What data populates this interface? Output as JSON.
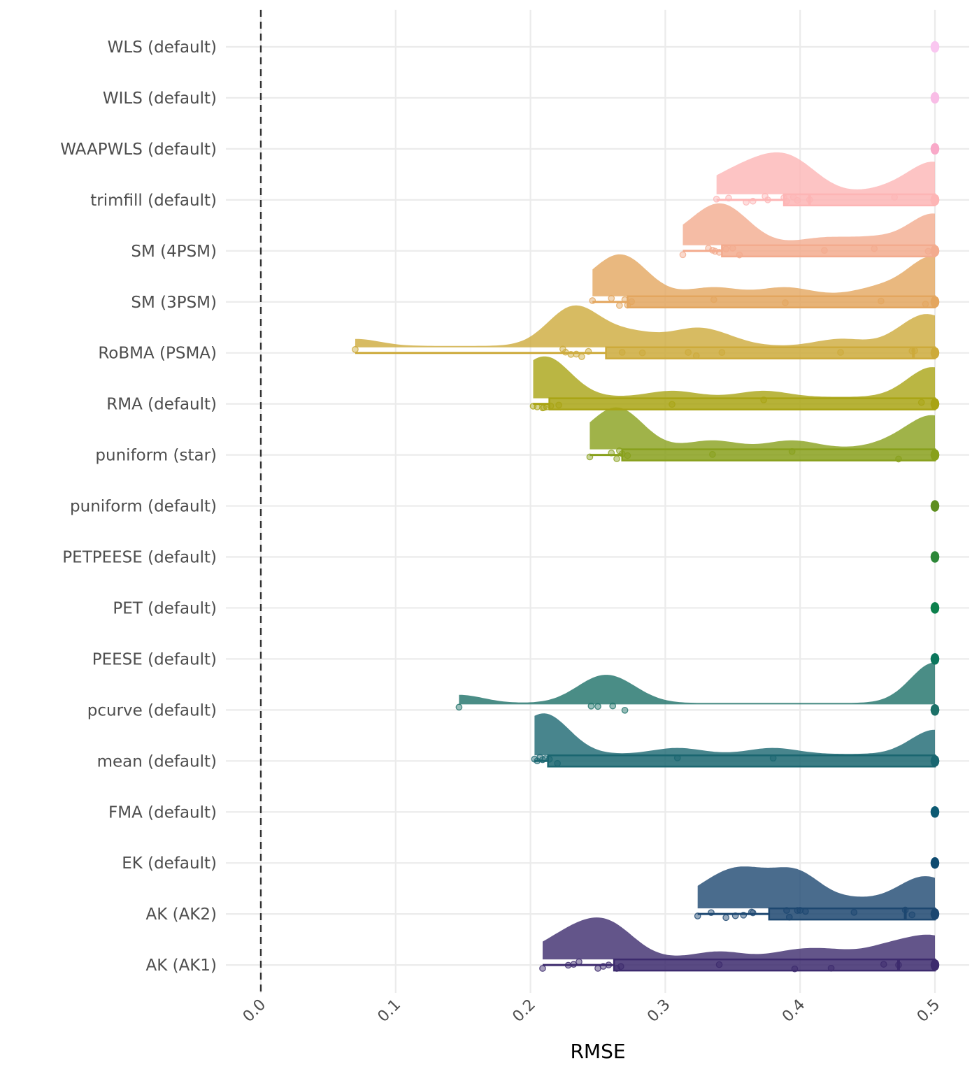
{
  "chart_data": {
    "type": "raincloud",
    "title": "",
    "xlabel": "RMSE",
    "ylabel": "",
    "xlim": [
      0,
      0.5
    ],
    "x_ticks": [
      "0.0",
      "0.1",
      "0.2",
      "0.3",
      "0.4",
      "0.5"
    ],
    "x_tick_values": [
      0,
      0.1,
      0.2,
      0.3,
      0.4,
      0.5
    ],
    "reference_line": {
      "x": 0,
      "style": "dashed",
      "color": "#333333"
    },
    "grid": true,
    "legend": "none",
    "categories": [
      "WLS (default)",
      "WILS (default)",
      "WAAPWLS (default)",
      "trimfill (default)",
      "SM (4PSM)",
      "SM (3PSM)",
      "RoBMA (PSMA)",
      "RMA (default)",
      "puniform (star)",
      "puniform (default)",
      "PETPEESE (default)",
      "PET (default)",
      "PEESE (default)",
      "pcurve (default)",
      "mean (default)",
      "FMA (default)",
      "EK (default)",
      "AK (AK2)",
      "AK (AK1)"
    ],
    "series": [
      {
        "name": "WLS (default)",
        "color": "#F9C6F0",
        "points": [
          0.5,
          0.5,
          0.5
        ]
      },
      {
        "name": "WILS (default)",
        "color": "#F8BDE6",
        "points": [
          0.5,
          0.5,
          0.5
        ]
      },
      {
        "name": "WAAPWLS (default)",
        "color": "#F8A8C8",
        "points": [
          0.5,
          0.5,
          0.5
        ]
      },
      {
        "name": "trimfill (default)",
        "color": "#FDB5B5",
        "points": [
          0.338,
          0.347,
          0.36,
          0.365,
          0.374,
          0.376,
          0.388,
          0.39,
          0.395,
          0.398,
          0.407,
          0.47,
          0.5,
          0.5,
          0.5,
          0.5,
          0.5
        ],
        "box": {
          "whisker_low": 0.338,
          "q1": 0.388,
          "median": 0.407,
          "q3": 0.5,
          "whisker_high": 0.5
        }
      },
      {
        "name": "SM (4PSM)",
        "color": "#F3AB8E",
        "points": [
          0.313,
          0.332,
          0.335,
          0.337,
          0.34,
          0.345,
          0.35,
          0.355,
          0.418,
          0.455,
          0.495,
          0.5,
          0.5,
          0.5,
          0.5
        ],
        "box": {
          "whisker_low": 0.313,
          "q1": 0.342,
          "median": 0.5,
          "q3": 0.5,
          "whisker_high": 0.5
        }
      },
      {
        "name": "SM (3PSM)",
        "color": "#E3A65F",
        "points": [
          0.246,
          0.26,
          0.266,
          0.27,
          0.272,
          0.275,
          0.336,
          0.389,
          0.46,
          0.493,
          0.5,
          0.5,
          0.5,
          0.5
        ],
        "box": {
          "whisker_low": 0.246,
          "q1": 0.272,
          "median": 0.5,
          "q3": 0.5,
          "whisker_high": 0.5
        }
      },
      {
        "name": "RoBMA (PSMA)",
        "color": "#CDAA3B",
        "points": [
          0.07,
          0.224,
          0.226,
          0.23,
          0.234,
          0.238,
          0.243,
          0.268,
          0.283,
          0.317,
          0.323,
          0.342,
          0.43,
          0.483,
          0.485,
          0.5,
          0.5,
          0.5
        ],
        "box": {
          "whisker_low": 0.07,
          "q1": 0.256,
          "median": 0.484,
          "q3": 0.5,
          "whisker_high": 0.5
        }
      },
      {
        "name": "RMA (default)",
        "color": "#A9A414",
        "points": [
          0.202,
          0.205,
          0.209,
          0.21,
          0.212,
          0.215,
          0.221,
          0.305,
          0.373,
          0.49,
          0.5,
          0.5,
          0.5,
          0.5
        ],
        "box": {
          "whisker_low": 0.202,
          "q1": 0.214,
          "median": 0.5,
          "q3": 0.5,
          "whisker_high": 0.5
        }
      },
      {
        "name": "puniform (star)",
        "color": "#88A01C",
        "points": [
          0.244,
          0.26,
          0.264,
          0.266,
          0.268,
          0.272,
          0.335,
          0.394,
          0.473,
          0.5,
          0.5,
          0.5,
          0.5
        ],
        "box": {
          "whisker_low": 0.244,
          "q1": 0.268,
          "median": 0.5,
          "q3": 0.5,
          "whisker_high": 0.5
        }
      },
      {
        "name": "puniform (default)",
        "color": "#5E8E1E",
        "points": [
          0.5,
          0.5,
          0.5
        ]
      },
      {
        "name": "PETPEESE (default)",
        "color": "#2E8738",
        "points": [
          0.5,
          0.5,
          0.5
        ]
      },
      {
        "name": "PET (default)",
        "color": "#0C7F4D",
        "points": [
          0.5,
          0.5,
          0.5
        ]
      },
      {
        "name": "PEESE (default)",
        "color": "#0B755C",
        "points": [
          0.5,
          0.5,
          0.5
        ]
      },
      {
        "name": "pcurve (default)",
        "color": "#1D7168",
        "points": [
          0.147,
          0.245,
          0.25,
          0.261,
          0.27,
          0.5,
          0.5,
          0.5,
          0.5,
          0.5
        ]
      },
      {
        "name": "mean (default)",
        "color": "#1A6670",
        "points": [
          0.203,
          0.205,
          0.207,
          0.209,
          0.211,
          0.214,
          0.22,
          0.309,
          0.38,
          0.5,
          0.5,
          0.5,
          0.5
        ],
        "box": {
          "whisker_low": 0.203,
          "q1": 0.213,
          "median": 0.5,
          "q3": 0.5,
          "whisker_high": 0.5
        }
      },
      {
        "name": "FMA (default)",
        "color": "#0D5A73",
        "points": [
          0.5,
          0.5,
          0.5
        ]
      },
      {
        "name": "EK (default)",
        "color": "#0E4B70",
        "points": [
          0.5,
          0.5,
          0.5
        ]
      },
      {
        "name": "AK (AK2)",
        "color": "#1D4770",
        "points": [
          0.324,
          0.334,
          0.345,
          0.352,
          0.358,
          0.364,
          0.365,
          0.39,
          0.392,
          0.398,
          0.4,
          0.404,
          0.44,
          0.478,
          0.483,
          0.5,
          0.5,
          0.5
        ],
        "box": {
          "whisker_low": 0.324,
          "q1": 0.377,
          "median": 0.478,
          "q3": 0.5,
          "whisker_high": 0.5
        }
      },
      {
        "name": "AK (AK1)",
        "color": "#3C2A6D",
        "points": [
          0.209,
          0.228,
          0.232,
          0.236,
          0.25,
          0.254,
          0.258,
          0.264,
          0.267,
          0.34,
          0.396,
          0.423,
          0.462,
          0.473,
          0.5,
          0.5,
          0.5
        ],
        "box": {
          "whisker_low": 0.209,
          "q1": 0.262,
          "median": 0.473,
          "q3": 0.5,
          "whisker_high": 0.5
        }
      }
    ]
  }
}
